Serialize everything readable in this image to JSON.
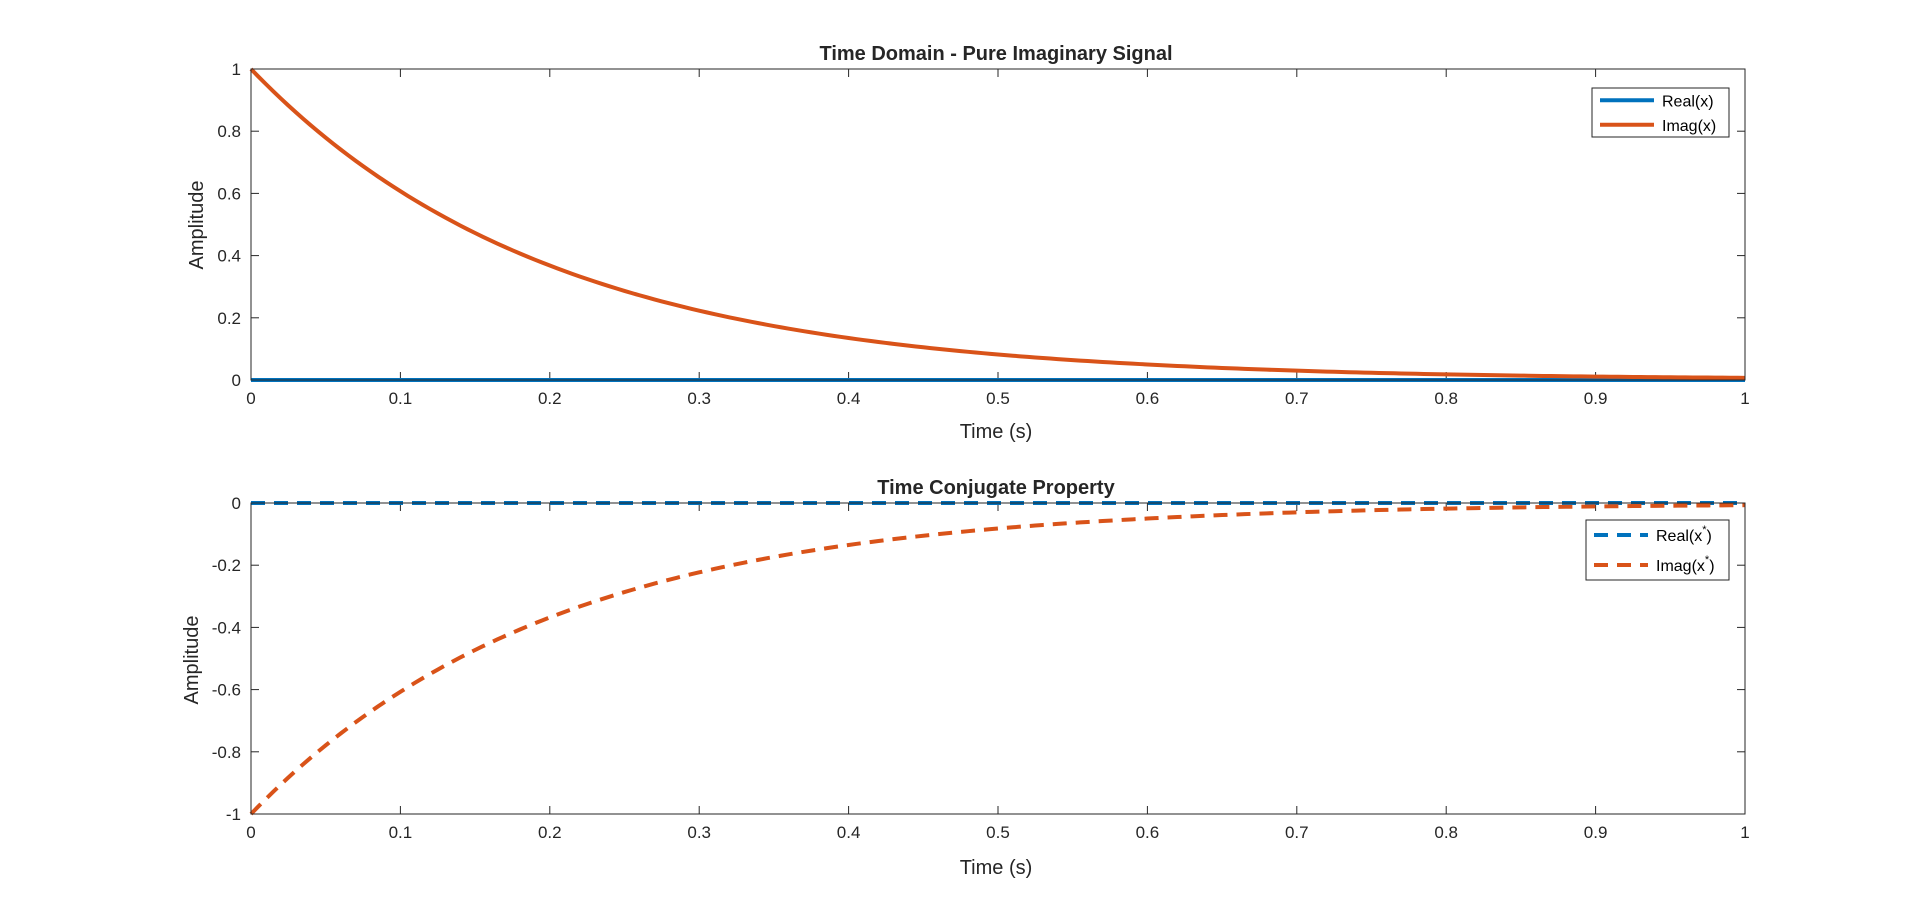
{
  "chart_data": [
    {
      "type": "line",
      "title": "Time Domain - Pure Imaginary Signal",
      "xlabel": "Time (s)",
      "ylabel": "Amplitude",
      "xlim": [
        0,
        1
      ],
      "ylim": [
        0,
        1
      ],
      "xticks": [
        0,
        0.1,
        0.2,
        0.3,
        0.4,
        0.5,
        0.6,
        0.7,
        0.8,
        0.9,
        1
      ],
      "xtick_labels": [
        "0",
        "0.1",
        "0.2",
        "0.3",
        "0.4",
        "0.5",
        "0.6",
        "0.7",
        "0.8",
        "0.9",
        "1"
      ],
      "yticks": [
        0,
        0.2,
        0.4,
        0.6,
        0.8,
        1
      ],
      "ytick_labels": [
        "0",
        "0.2",
        "0.4",
        "0.6",
        "0.8",
        "1"
      ],
      "grid": false,
      "legend_position": "top-right",
      "x": [
        0,
        0.1,
        0.2,
        0.3,
        0.4,
        0.5,
        0.6,
        0.7,
        0.8,
        0.9,
        1
      ],
      "series": [
        {
          "name": "Real(x)",
          "line_style": "solid",
          "color": "#0072BD",
          "values": [
            0,
            0,
            0,
            0,
            0,
            0,
            0,
            0,
            0,
            0,
            0
          ]
        },
        {
          "name": "Imag(x)",
          "line_style": "solid",
          "color": "#D95319",
          "values": [
            1,
            0.607,
            0.368,
            0.223,
            0.135,
            0.082,
            0.05,
            0.03,
            0.018,
            0.011,
            0.007
          ]
        }
      ]
    },
    {
      "type": "line",
      "title": "Time Conjugate Property",
      "xlabel": "Time (s)",
      "ylabel": "Amplitude",
      "xlim": [
        0,
        1
      ],
      "ylim": [
        -1,
        0
      ],
      "xticks": [
        0,
        0.1,
        0.2,
        0.3,
        0.4,
        0.5,
        0.6,
        0.7,
        0.8,
        0.9,
        1
      ],
      "xtick_labels": [
        "0",
        "0.1",
        "0.2",
        "0.3",
        "0.4",
        "0.5",
        "0.6",
        "0.7",
        "0.8",
        "0.9",
        "1"
      ],
      "yticks": [
        -1,
        -0.8,
        -0.6,
        -0.4,
        -0.2,
        0
      ],
      "ytick_labels": [
        "-1",
        "-0.8",
        "-0.6",
        "-0.4",
        "-0.2",
        "0"
      ],
      "grid": false,
      "legend_position": "top-right",
      "x": [
        0,
        0.1,
        0.2,
        0.3,
        0.4,
        0.5,
        0.6,
        0.7,
        0.8,
        0.9,
        1
      ],
      "series": [
        {
          "name": "Real(x*)",
          "name_base": "Real(x",
          "name_sup": "*",
          "name_tail": ")",
          "line_style": "dashed",
          "color": "#0072BD",
          "values": [
            0,
            0,
            0,
            0,
            0,
            0,
            0,
            0,
            0,
            0,
            0
          ]
        },
        {
          "name": "Imag(x*)",
          "name_base": "Imag(x",
          "name_sup": "*",
          "name_tail": ")",
          "line_style": "dashed",
          "color": "#D95319",
          "values": [
            -1,
            -0.607,
            -0.368,
            -0.223,
            -0.135,
            -0.082,
            -0.05,
            -0.03,
            -0.018,
            -0.011,
            -0.007
          ]
        }
      ]
    }
  ]
}
